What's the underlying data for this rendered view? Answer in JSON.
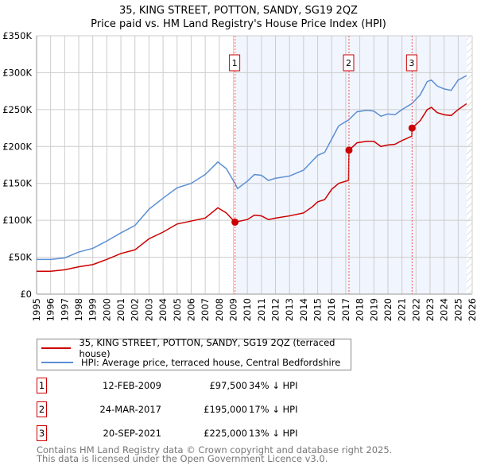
{
  "chart_data": {
    "type": "line",
    "title": "35, KING STREET, POTTON, SANDY, SG19 2QZ",
    "subtitle": "Price paid vs. HM Land Registry's House Price Index (HPI)",
    "xlim": [
      1995,
      2026
    ],
    "ylim": [
      0,
      350000
    ],
    "y_ticks": [
      {
        "v": 0,
        "label": "£0"
      },
      {
        "v": 50000,
        "label": "£50K"
      },
      {
        "v": 100000,
        "label": "£100K"
      },
      {
        "v": 150000,
        "label": "£150K"
      },
      {
        "v": 200000,
        "label": "£200K"
      },
      {
        "v": 250000,
        "label": "£250K"
      },
      {
        "v": 300000,
        "label": "£300K"
      },
      {
        "v": 350000,
        "label": "£350K"
      }
    ],
    "x_ticks": [
      "1995",
      "1996",
      "1997",
      "1998",
      "1999",
      "2000",
      "2001",
      "2002",
      "2003",
      "2004",
      "2005",
      "2006",
      "2007",
      "2008",
      "2009",
      "2010",
      "2011",
      "2012",
      "2013",
      "2014",
      "2015",
      "2016",
      "2017",
      "2018",
      "2019",
      "2020",
      "2021",
      "2022",
      "2023",
      "2024",
      "2025",
      "2026"
    ],
    "grid": true,
    "series": [
      {
        "name": "35, KING STREET, POTTON, SANDY, SG19 2QZ (terraced house)",
        "color": "#cc0000",
        "x": [
          1995,
          1996,
          1997,
          1998,
          1999,
          2000,
          2001,
          2002,
          2003,
          2004,
          2005,
          2006,
          2007,
          2007.9,
          2008.5,
          2009.12,
          2010,
          2010.5,
          2011,
          2011.5,
          2012,
          2013,
          2014,
          2014.6,
          2015,
          2015.5,
          2016,
          2016.5,
          2017.2,
          2017.23,
          2017.8,
          2018.5,
          2019,
          2019.5,
          2020,
          2020.5,
          2021,
          2021.7,
          2021.72,
          2022.3,
          2022.8,
          2023.1,
          2023.5,
          2024,
          2024.5,
          2025,
          2025.6
        ],
        "y": [
          31000,
          31000,
          33000,
          37000,
          40000,
          47000,
          55000,
          60000,
          75000,
          84000,
          95000,
          99000,
          103000,
          117000,
          110000,
          97500,
          101000,
          107000,
          106000,
          101000,
          103000,
          106000,
          110000,
          118000,
          125000,
          128000,
          142000,
          150000,
          154000,
          195000,
          205000,
          207000,
          207000,
          200000,
          202000,
          203000,
          208000,
          214000,
          225000,
          235000,
          250000,
          253000,
          246000,
          243000,
          242000,
          250000,
          258000
        ]
      },
      {
        "name": "HPI: Average price, terraced house, Central Bedfordshire",
        "color": "#5b8fd4",
        "x": [
          1995,
          1996,
          1997,
          1998,
          1999,
          2000,
          2001,
          2002,
          2003,
          2004,
          2005,
          2006,
          2007,
          2007.9,
          2008.5,
          2009.12,
          2009.3,
          2010,
          2010.5,
          2011,
          2011.5,
          2012,
          2013,
          2014,
          2014.6,
          2015,
          2015.5,
          2016,
          2016.5,
          2017.2,
          2017.8,
          2018.5,
          2019,
          2019.5,
          2020,
          2020.5,
          2021,
          2021.7,
          2022.3,
          2022.8,
          2023.1,
          2023.5,
          2024,
          2024.5,
          2025,
          2025.6
        ],
        "y": [
          47000,
          47000,
          49000,
          57000,
          62000,
          72000,
          83000,
          93000,
          115000,
          130000,
          144000,
          150000,
          162000,
          179000,
          170000,
          150000,
          143000,
          153000,
          162000,
          161000,
          154000,
          157000,
          160000,
          168000,
          180000,
          188000,
          192000,
          210000,
          228000,
          236000,
          247000,
          249000,
          248000,
          241000,
          244000,
          243000,
          250000,
          258000,
          270000,
          288000,
          290000,
          282000,
          278000,
          276000,
          290000,
          296000
        ]
      }
    ],
    "sales": [
      {
        "n": "1",
        "date": "12-FEB-2009",
        "x": 2009.12,
        "price": "£97,500",
        "value": 97500,
        "hpi": "34% ↓ HPI"
      },
      {
        "n": "2",
        "date": "24-MAR-2017",
        "x": 2017.23,
        "price": "£195,000",
        "value": 195000,
        "hpi": "17% ↓ HPI"
      },
      {
        "n": "3",
        "date": "20-SEP-2021",
        "x": 2021.72,
        "price": "£225,000",
        "value": 225000,
        "hpi": "13% ↓ HPI"
      }
    ],
    "shaded_from": 2009.12,
    "data_end": 2025.6
  },
  "footer": [
    "Contains HM Land Registry data © Crown copyright and database right 2025.",
    "This data is licensed under the Open Government Licence v3.0."
  ]
}
